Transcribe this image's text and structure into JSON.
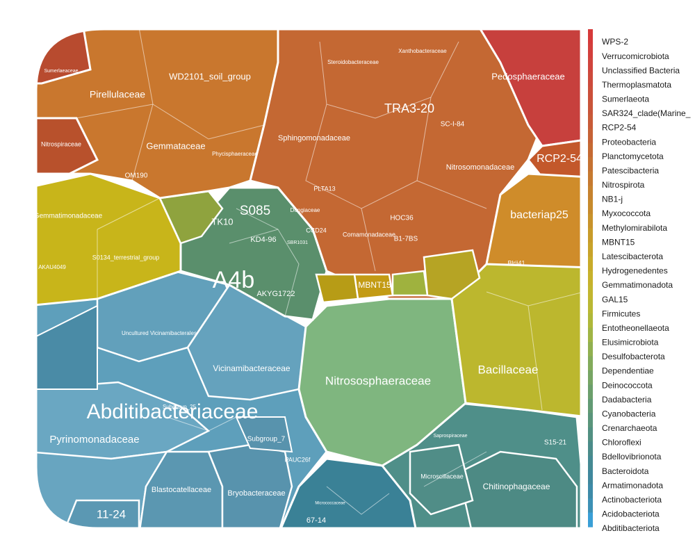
{
  "chart_data": {
    "type": "voronoi-treemap",
    "title": "",
    "legend": {
      "position": "right",
      "entries": [
        {
          "name": "WPS-2",
          "color": "#d63a3a"
        },
        {
          "name": "Verrucomicrobiota",
          "color": "#d33f3c"
        },
        {
          "name": "Unclassified Bacteria",
          "color": "#d0443d"
        },
        {
          "name": "Thermoplasmatota",
          "color": "#cd4a3c"
        },
        {
          "name": "Sumerlaeota",
          "color": "#cb4f3a"
        },
        {
          "name": "SAR324_clade(Marine_",
          "color": "#c9553a"
        },
        {
          "name": "RCP2-54",
          "color": "#c85b38"
        },
        {
          "name": "Proteobacteria",
          "color": "#c66236"
        },
        {
          "name": "Planctomycetota",
          "color": "#c56a33"
        },
        {
          "name": "Patescibacteria",
          "color": "#c57232"
        },
        {
          "name": "Nitrospirota",
          "color": "#c67a30"
        },
        {
          "name": "NB1-j",
          "color": "#c6822e"
        },
        {
          "name": "Myxococcota",
          "color": "#c78b2c"
        },
        {
          "name": "Methylomirabilota",
          "color": "#c8932b"
        },
        {
          "name": "MBNT15",
          "color": "#c89b2a"
        },
        {
          "name": "Latescibacterota",
          "color": "#c8a32a"
        },
        {
          "name": "Hydrogenedentes",
          "color": "#c8ab2a"
        },
        {
          "name": "Gemmatimonadota",
          "color": "#c7b22c"
        },
        {
          "name": "GAL15",
          "color": "#c2b630"
        },
        {
          "name": "Firmicutes",
          "color": "#bab834"
        },
        {
          "name": "Entotheonellaeota",
          "color": "#afb83a"
        },
        {
          "name": "Elusimicrobiota",
          "color": "#a0b545"
        },
        {
          "name": "Desulfobacterota",
          "color": "#91b050"
        },
        {
          "name": "Dependentiae",
          "color": "#83ab5b"
        },
        {
          "name": "Deinococcota",
          "color": "#77a564"
        },
        {
          "name": "Dadabacteria",
          "color": "#6c9f6c"
        },
        {
          "name": "Cyanobacteria",
          "color": "#629a74"
        },
        {
          "name": "Crenarchaeota",
          "color": "#5a957b"
        },
        {
          "name": "Chloroflexi",
          "color": "#529082"
        },
        {
          "name": "Bdellovibrionota",
          "color": "#4b8c8a"
        },
        {
          "name": "Bacteroidota",
          "color": "#458a93"
        },
        {
          "name": "Armatimonadota",
          "color": "#40889d"
        },
        {
          "name": "Actinobacteriota",
          "color": "#3e8ba8"
        },
        {
          "name": "Acidobacteriota",
          "color": "#3d91b5"
        },
        {
          "name": "Abditibacteriota",
          "color": "#3a9fd6"
        }
      ]
    },
    "phyla_regions": [
      {
        "name": "Acidobacteriota",
        "color": "#5a9cb8",
        "labels": [
          "Abditibacteriaceae",
          "Pyrinomonadaceae",
          "Vicinamibacteraceae",
          "Uncultured Vicinamibacterales",
          "Blastocatellaceae",
          "Bryobacteraceae",
          "11-24",
          "Subgroup_7",
          "Subgroup_25",
          "PAUC26f"
        ]
      },
      {
        "name": "Bacteroidota",
        "color": "#4e8e88",
        "labels": [
          "Chitinophagaceae",
          "Microscillaceae",
          "Saprospiraceae",
          "S15-21"
        ]
      },
      {
        "name": "Actinobacteriota",
        "color": "#3f8596",
        "labels": [
          "67-14",
          "Micrococcaceae"
        ]
      },
      {
        "name": "Crenarchaeota",
        "color": "#7db57f",
        "labels": [
          "Nitrososphaeraceae"
        ]
      },
      {
        "name": "Firmicutes",
        "color": "#b8b52e",
        "labels": [
          "Bacillaceae"
        ]
      },
      {
        "name": "Proteobacteria",
        "color": "#c5692f",
        "labels": [
          "TRA3-20",
          "Sphingomonadaceae",
          "Nitrosomonadaceae",
          "Comamonadaceae",
          "Steroidobacteraceae",
          "Xanthobacteraceae",
          "SC-I-84",
          "PLTA13",
          "Dongiaceae",
          "HOC36",
          "B1-7BS",
          "CCD24"
        ]
      },
      {
        "name": "Planctomycetota",
        "color": "#c9762d",
        "labels": [
          "WD2101_soil_group",
          "Pirellulaceae",
          "Gemmataceae",
          "Phycisphaeraceae",
          "OM190"
        ]
      },
      {
        "name": "Verrucomicrobiota",
        "color": "#c73f3c",
        "labels": [
          "Pedosphaeraceae"
        ]
      },
      {
        "name": "RCP2-54",
        "color": "#c3582b",
        "labels": [
          "RCP2-54"
        ]
      },
      {
        "name": "Myxococcota",
        "color": "#cf8c2a",
        "labels": [
          "bacteriap25",
          "Blrii41"
        ]
      },
      {
        "name": "Gemmatimonadota",
        "color": "#c7b41a",
        "labels": [
          "Gemmatimonadaceae",
          "S0134_terrestrial_group",
          "AKAU4049"
        ]
      },
      {
        "name": "Chloroflexi",
        "color": "#5a8f6c",
        "labels": [
          "A4b",
          "S085",
          "KD4-96",
          "TK10",
          "AKYG1722",
          "SBR1031"
        ]
      },
      {
        "name": "MBNT15",
        "color": "#c39b14",
        "labels": [
          "MBNT15"
        ]
      },
      {
        "name": "Nitrospirota",
        "color": "#b8512c",
        "labels": [
          "Nitrospiraceae"
        ]
      },
      {
        "name": "Sumerlaeota",
        "color": "#b84b2f",
        "labels": [
          "Sumerlaeaceae"
        ]
      }
    ]
  }
}
